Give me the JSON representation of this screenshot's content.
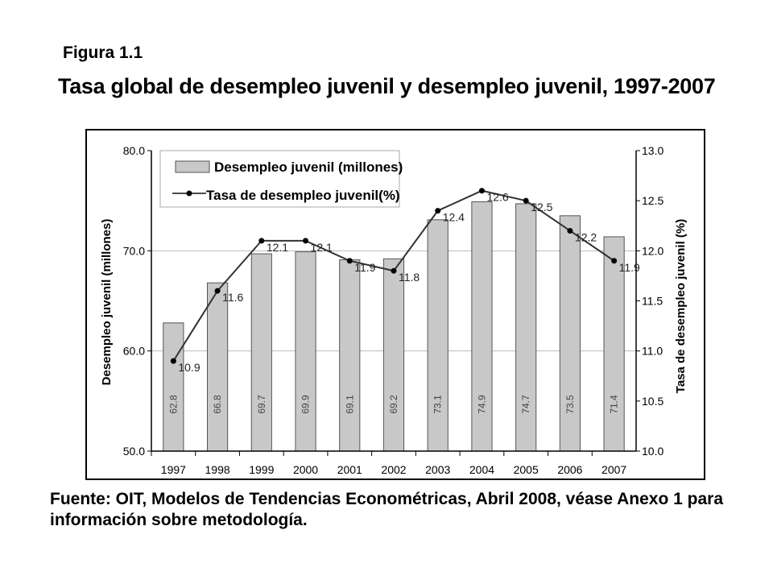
{
  "figure_label": "Figura 1.1",
  "title": "Tasa global de desempleo juvenil y desempleo juvenil, 1997-2007",
  "source": "Fuente: OIT, Modelos de Tendencias Econométricas, Abril 2008, véase Anexo 1 para información sobre metodología.",
  "colors": {
    "bar_fill": "#c8c8c8",
    "bar_stroke": "#555555",
    "line": "#333333",
    "grid": "#bbbbbb"
  },
  "chart_data": {
    "type": "bar",
    "categories": [
      "1997",
      "1998",
      "1999",
      "2000",
      "2001",
      "2002",
      "2003",
      "2004",
      "2005",
      "2006",
      "2007"
    ],
    "series": [
      {
        "name": "Desempleo juvenil (millones)",
        "type": "bar",
        "axis": "left",
        "values": [
          62.8,
          66.8,
          69.7,
          69.9,
          69.1,
          69.2,
          73.1,
          74.9,
          74.7,
          73.5,
          71.4
        ],
        "labels": [
          "62.8",
          "66.8",
          "69.7",
          "69.9",
          "69.1",
          "69.2",
          "73.1",
          "74.9",
          "74.7",
          "73.5",
          "71.4"
        ]
      },
      {
        "name": "Tasa de desempleo juvenil(%)",
        "type": "line",
        "axis": "right",
        "values": [
          10.9,
          11.6,
          12.1,
          12.1,
          11.9,
          11.8,
          12.4,
          12.6,
          12.5,
          12.2,
          11.9
        ],
        "labels": [
          "10.9",
          "11.6",
          "12.1",
          "12.1",
          "11.9",
          "11.8",
          "12.4",
          "12.6",
          "12.5",
          "12.2",
          "11.9"
        ]
      }
    ],
    "ylabel": "Desempleo juvenil (millones)",
    "y2label": "Tasa de desempleo juvenil (%)",
    "ylim": [
      50,
      80
    ],
    "y2lim": [
      10,
      13
    ],
    "yticks": [
      "50.0",
      "60.0",
      "70.0",
      "80.0"
    ],
    "y2ticks": [
      "10.0",
      "10.5",
      "11.0",
      "11.5",
      "12.0",
      "12.5",
      "13.0"
    ],
    "grid": true,
    "legend_position": "top-left"
  }
}
